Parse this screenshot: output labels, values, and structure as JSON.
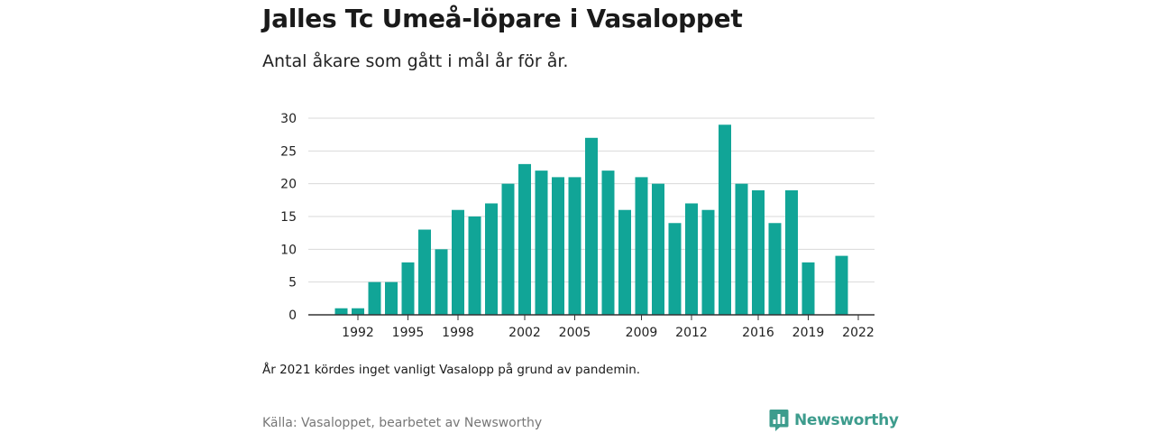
{
  "header": {
    "title": "Jalles Tc Umeå-löpare i Vasaloppet",
    "subtitle": "Antal åkare som gått i mål år för år."
  },
  "footer": {
    "note": "År 2021 kördes inget vanligt Vasalopp på grund av pandemin.",
    "source": "Källa: Vasaloppet, bearbetet av Newsworthy",
    "brand": "Newsworthy"
  },
  "colors": {
    "bar": "#11a597",
    "grid": "#d9d9d9",
    "axis": "#333333",
    "brand": "#3d9c8d"
  },
  "chart_data": {
    "type": "bar",
    "title": "Jalles Tc Umeå-löpare i Vasaloppet",
    "subtitle": "Antal åkare som gått i mål år för år.",
    "xlabel": "",
    "ylabel": "",
    "ylim": [
      0,
      30
    ],
    "yticks": [
      0,
      5,
      10,
      15,
      20,
      25,
      30
    ],
    "xticks": [
      1992,
      1995,
      1998,
      2002,
      2005,
      2009,
      2012,
      2016,
      2019,
      2022
    ],
    "grid": true,
    "legend": "none",
    "x": [
      1990,
      1991,
      1992,
      1993,
      1994,
      1995,
      1996,
      1997,
      1998,
      1999,
      2000,
      2001,
      2002,
      2003,
      2004,
      2005,
      2006,
      2007,
      2008,
      2009,
      2010,
      2011,
      2012,
      2013,
      2014,
      2015,
      2016,
      2017,
      2018,
      2019,
      2020,
      2021,
      2022
    ],
    "values": [
      0,
      1,
      1,
      5,
      5,
      8,
      13,
      10,
      16,
      15,
      17,
      20,
      23,
      22,
      21,
      21,
      27,
      22,
      16,
      21,
      20,
      14,
      17,
      16,
      29,
      20,
      19,
      14,
      19,
      8,
      0,
      9,
      0
    ]
  }
}
